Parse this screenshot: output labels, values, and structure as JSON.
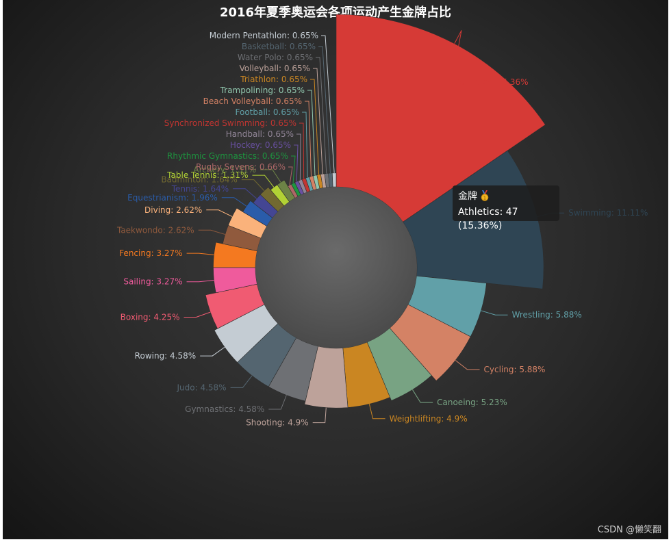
{
  "title": "2016年夏季奥运会各项运动产生金牌占比",
  "watermark": "CSDN @懒笑翻",
  "tooltip": {
    "series_label": "金牌",
    "medal_icon": "gold-medal-icon",
    "line": "Athletics: 47 (15.36%)"
  },
  "chart_data": {
    "type": "pie",
    "variant": "nightingale-rose",
    "slices": [
      {
        "name": "Athletics",
        "pct": 15.36,
        "label": "Athletics: 15.36%",
        "color": "#d63a36"
      },
      {
        "name": "Swimming",
        "pct": 11.11,
        "label": "Swimming: 11.11%",
        "color": "#2f4554"
      },
      {
        "name": "Wrestling",
        "pct": 5.88,
        "label": "Wrestling: 5.88%",
        "color": "#61a0a8"
      },
      {
        "name": "Cycling",
        "pct": 5.88,
        "label": "Cycling: 5.88%",
        "color": "#d48265"
      },
      {
        "name": "Canoeing",
        "pct": 5.23,
        "label": "Canoeing: 5.23%",
        "color": "#78a383"
      },
      {
        "name": "Weightlifting",
        "pct": 4.9,
        "label": "Weightlifting: 4.9%",
        "color": "#ca8622"
      },
      {
        "name": "Shooting",
        "pct": 4.9,
        "label": "Shooting: 4.9%",
        "color": "#bda29a"
      },
      {
        "name": "Gymnastics",
        "pct": 4.58,
        "label": "Gymnastics: 4.58%",
        "color": "#6e7074"
      },
      {
        "name": "Judo",
        "pct": 4.58,
        "label": "Judo: 4.58%",
        "color": "#546570"
      },
      {
        "name": "Rowing",
        "pct": 4.58,
        "label": "Rowing: 4.58%",
        "color": "#c4ccd3"
      },
      {
        "name": "Boxing",
        "pct": 4.25,
        "label": "Boxing: 4.25%",
        "color": "#f05b72"
      },
      {
        "name": "Sailing",
        "pct": 3.27,
        "label": "Sailing: 3.27%",
        "color": "#ef5b9c"
      },
      {
        "name": "Fencing",
        "pct": 3.27,
        "label": "Fencing: 3.27%",
        "color": "#f47920"
      },
      {
        "name": "Taekwondo",
        "pct": 2.62,
        "label": "Taekwondo: 2.62%",
        "color": "#905a3d"
      },
      {
        "name": "Diving",
        "pct": 2.62,
        "label": "Diving: 2.62%",
        "color": "#fab27b"
      },
      {
        "name": "Equestrianism",
        "pct": 1.96,
        "label": "Equestrianism: 1.96%",
        "color": "#2a5caa"
      },
      {
        "name": "Tennis",
        "pct": 1.64,
        "label": "Tennis: 1.64%",
        "color": "#444693"
      },
      {
        "name": "Badminton",
        "pct": 1.64,
        "label": "Badminton: 1.64%",
        "color": "#726930"
      },
      {
        "name": "Table Tennis",
        "pct": 1.31,
        "label": "Table Tennis: 1.31%",
        "color": "#b2d235"
      },
      {
        "name": "Archery",
        "pct": 1.31,
        "label": "Archery: 1.31%",
        "color": "#6d8346"
      },
      {
        "name": "Rugby Sevens",
        "pct": 0.66,
        "label": "Rugby Sevens: 0.66%",
        "color": "#ac6767"
      },
      {
        "name": "Rhythmic Gymnastics",
        "pct": 0.65,
        "label": "Rhythmic Gymnastics: 0.65%",
        "color": "#1d953f"
      },
      {
        "name": "Hockey",
        "pct": 0.65,
        "label": "Hockey: 0.65%",
        "color": "#6950a1"
      },
      {
        "name": "Handball",
        "pct": 0.65,
        "label": "Handball: 0.65%",
        "color": "#918597"
      },
      {
        "name": "Synchronized Swimming",
        "pct": 0.65,
        "label": "Synchronized Swimming: 0.65%",
        "color": "#c23531"
      },
      {
        "name": "Football",
        "pct": 0.65,
        "label": "Football: 0.65%",
        "color": "#61a0a8"
      },
      {
        "name": "Beach Volleyball",
        "pct": 0.65,
        "label": "Beach Volleyball: 0.65%",
        "color": "#d48265"
      },
      {
        "name": "Trampolining",
        "pct": 0.65,
        "label": "Trampolining: 0.65%",
        "color": "#91c7ae"
      },
      {
        "name": "Triathlon",
        "pct": 0.65,
        "label": "Triathlon: 0.65%",
        "color": "#ca8622"
      },
      {
        "name": "Volleyball",
        "pct": 0.65,
        "label": "Volleyball: 0.65%",
        "color": "#bda29a"
      },
      {
        "name": "Water Polo",
        "pct": 0.65,
        "label": "Water Polo: 0.65%",
        "color": "#6e7074"
      },
      {
        "name": "Basketball",
        "pct": 0.65,
        "label": "Basketball: 0.65%",
        "color": "#546570"
      },
      {
        "name": "Modern Pentathlon",
        "pct": 0.65,
        "label": "Modern Pentathlon: 0.65%",
        "color": "#c4ccd3"
      }
    ]
  }
}
